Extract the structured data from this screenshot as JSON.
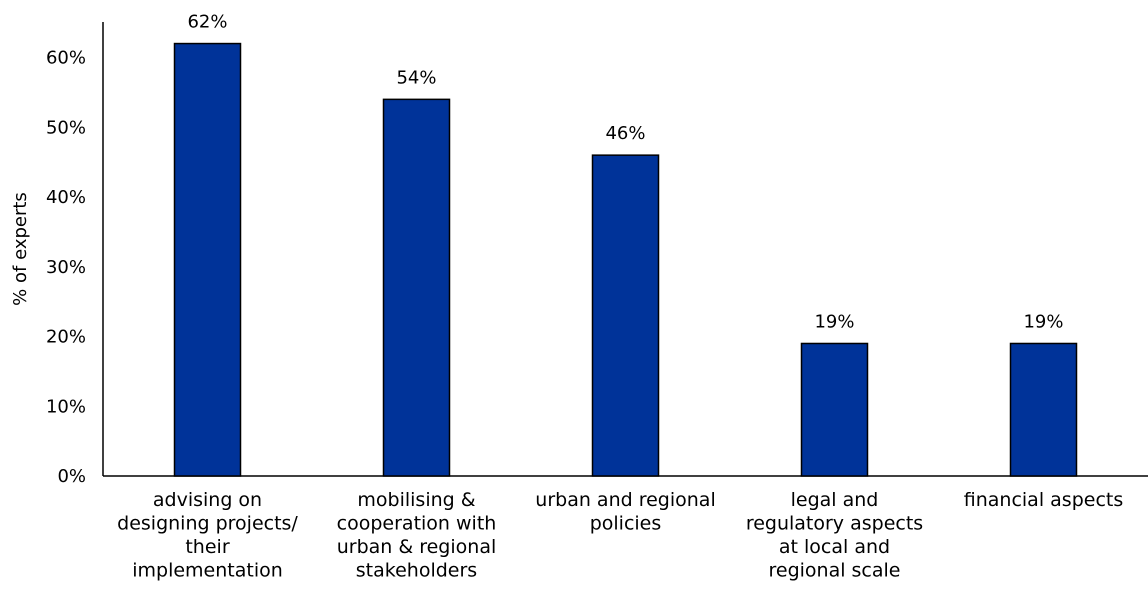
{
  "chart_data": {
    "type": "bar",
    "title": "",
    "xlabel": "",
    "ylabel": "% of experts",
    "ylim": [
      0,
      60
    ],
    "yticks": [
      "0%",
      "10%",
      "20%",
      "30%",
      "40%",
      "50%",
      "60%"
    ],
    "grid": false,
    "categories": [
      [
        "advising on",
        "designing projects/",
        "their",
        "implementation"
      ],
      [
        "mobilising &",
        "cooperation with",
        "urban & regional",
        "stakeholders"
      ],
      [
        "urban and regional",
        "policies"
      ],
      [
        "legal and",
        "regulatory aspects",
        "at local and",
        "regional scale"
      ],
      [
        "financial aspects"
      ]
    ],
    "values": [
      62,
      54,
      46,
      19,
      19
    ],
    "data_labels": [
      "62%",
      "54%",
      "46%",
      "19%",
      "19%"
    ],
    "bar_color": "#003399",
    "bar_edge_color": "#000000"
  }
}
